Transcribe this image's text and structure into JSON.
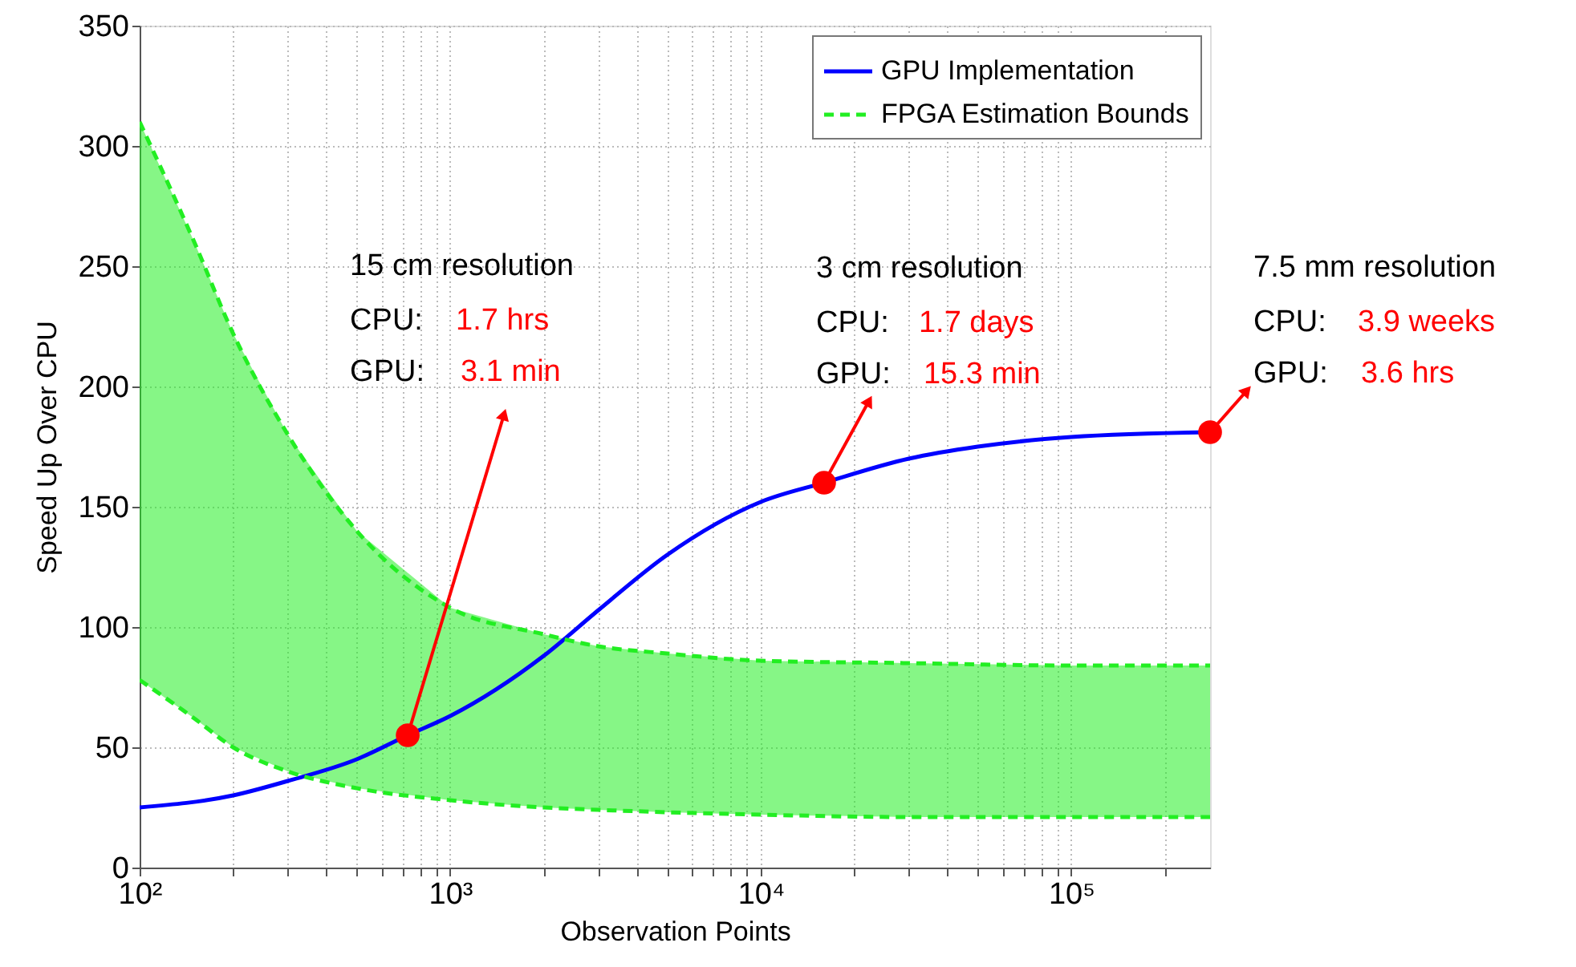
{
  "chart_data": {
    "type": "line",
    "xlabel": "Observation Points",
    "ylabel": "Speed Up Over CPU",
    "log": "x",
    "grid": true,
    "legend": "top right",
    "xlim": [
      100,
      280000
    ],
    "ylim": [
      0,
      350
    ],
    "xticks": [
      {
        "value": 100,
        "label": "10²"
      },
      {
        "value": 200,
        "label": null
      },
      {
        "value": 300,
        "label": null
      },
      {
        "value": 400,
        "label": null
      },
      {
        "value": 500,
        "label": null
      },
      {
        "value": 600,
        "label": null
      },
      {
        "value": 700,
        "label": null
      },
      {
        "value": 800,
        "label": null
      },
      {
        "value": 900,
        "label": null
      },
      {
        "value": 1000,
        "label": "10³"
      },
      {
        "value": 2000,
        "label": null
      },
      {
        "value": 3000,
        "label": null
      },
      {
        "value": 4000,
        "label": null
      },
      {
        "value": 5000,
        "label": null
      },
      {
        "value": 6000,
        "label": null
      },
      {
        "value": 7000,
        "label": null
      },
      {
        "value": 8000,
        "label": null
      },
      {
        "value": 9000,
        "label": null
      },
      {
        "value": 10000,
        "label": "10⁴"
      },
      {
        "value": 20000,
        "label": null
      },
      {
        "value": 30000,
        "label": null
      },
      {
        "value": 40000,
        "label": null
      },
      {
        "value": 50000,
        "label": null
      },
      {
        "value": 60000,
        "label": null
      },
      {
        "value": 70000,
        "label": null
      },
      {
        "value": 80000,
        "label": null
      },
      {
        "value": 90000,
        "label": null
      },
      {
        "value": 100000,
        "label": "10⁵"
      },
      {
        "value": 200000,
        "label": null
      }
    ],
    "yticks": [
      0,
      50,
      100,
      150,
      200,
      250,
      300,
      350
    ],
    "series": [
      {
        "name": "GPU Implementation",
        "color": "#0000ff",
        "line_style": "solid",
        "x": [
          100,
          200,
          300,
          500,
          730,
          1000,
          2000,
          3000,
          5000,
          10000,
          16000,
          30000,
          50000,
          100000,
          280000
        ],
        "values": [
          25,
          30,
          36,
          45,
          55,
          63,
          88,
          107,
          130,
          152,
          160,
          170,
          175,
          179,
          181
        ]
      },
      {
        "name": "FPGA Estimation Bounds",
        "type": "line",
        "color": "#22ee22",
        "line_style": "dashed",
        "x": [
          100,
          150,
          200,
          300,
          500,
          1000,
          2000,
          3000,
          5000,
          10000,
          30000,
          100000,
          280000
        ],
        "values": [
          310,
          260,
          222,
          180,
          140,
          108,
          97,
          92,
          89,
          86,
          85,
          84,
          84
        ],
        "lower": [
          78,
          62,
          50,
          40,
          33,
          28,
          25,
          24,
          23,
          22,
          21,
          21,
          21
        ],
        "upper": [
          310,
          260,
          222,
          180,
          140,
          108,
          97,
          92,
          89,
          86,
          85,
          84,
          84
        ]
      },
      {
        "type": "line",
        "color": "#22ee22",
        "line_style": "dashed",
        "x": [
          100,
          150,
          200,
          300,
          500,
          1000,
          2000,
          3000,
          5000,
          10000,
          30000,
          100000,
          280000
        ],
        "values": [
          78,
          62,
          50,
          40,
          33,
          28,
          25,
          24,
          23,
          22,
          21,
          21,
          21
        ]
      },
      {
        "type": "scatter",
        "color": "#ff0000",
        "marker": "circle",
        "x": [
          730,
          16000,
          280000
        ],
        "values": [
          55,
          160,
          181
        ]
      }
    ],
    "annotations": [
      "15 cm resolution",
      "CPU:",
      "1.7 hrs",
      "GPU:",
      "3.1 min",
      "3 cm resolution",
      "CPU:",
      "1.7 days",
      "GPU:",
      "15.3 min",
      "7.5 mm resolution",
      "CPU:",
      "3.9 weeks",
      "GPU:",
      "3.6 hrs"
    ]
  }
}
